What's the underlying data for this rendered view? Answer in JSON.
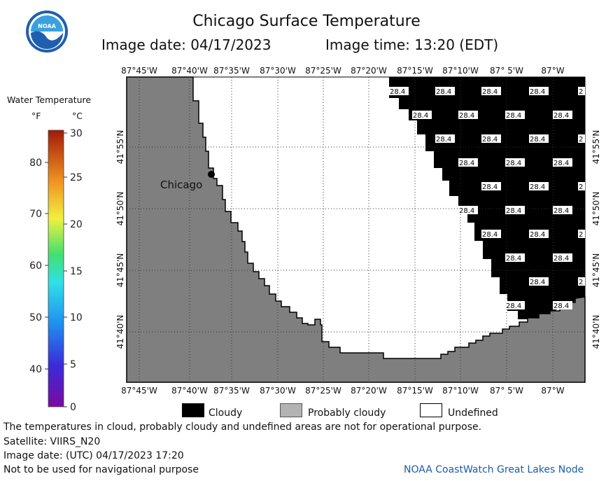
{
  "header": {
    "title": "Chicago Surface Temperature",
    "image_date": "Image date: 04/17/2023",
    "image_time": "Image time: 13:20 (EDT)",
    "logo_text": "NOAA"
  },
  "legend": {
    "title": "Water Temperature",
    "unit_f": "°F",
    "unit_c": "°C",
    "f_ticks": [
      "80",
      "70",
      "60",
      "50",
      "40"
    ],
    "c_ticks": [
      "30",
      "25",
      "20",
      "15",
      "10",
      "5",
      "0"
    ]
  },
  "map": {
    "lon_labels": [
      "87°45'W",
      "87°40'W",
      "87°35'W",
      "87°30'W",
      "87°25'W",
      "87°20'W",
      "87°15'W",
      "87°10'W",
      "87° 5'W",
      "87°W"
    ],
    "lat_labels": [
      "41°55'N",
      "41°50'N",
      "41°45'N",
      "41°40'N"
    ],
    "city_label": "Chicago",
    "cloud_value": "28.4",
    "colors": {
      "land": "#7f7f7f",
      "cloud": "#000000",
      "undefined": "#ffffff"
    }
  },
  "map_legend": {
    "cloudy": "Cloudy",
    "probably_cloudy": "Probably cloudy",
    "undefined": "Undefined"
  },
  "footer": {
    "note": "The temperatures in cloud, probably cloudy and undefined areas are not for operational purpose.",
    "satellite": "Satellite: VIIRS_N20",
    "utc_date": "Image date: (UTC) 04/17/2023  17:20",
    "nav_warning": "Not to be used for navigational purpose",
    "credit": "NOAA CoastWatch Great Lakes Node"
  }
}
